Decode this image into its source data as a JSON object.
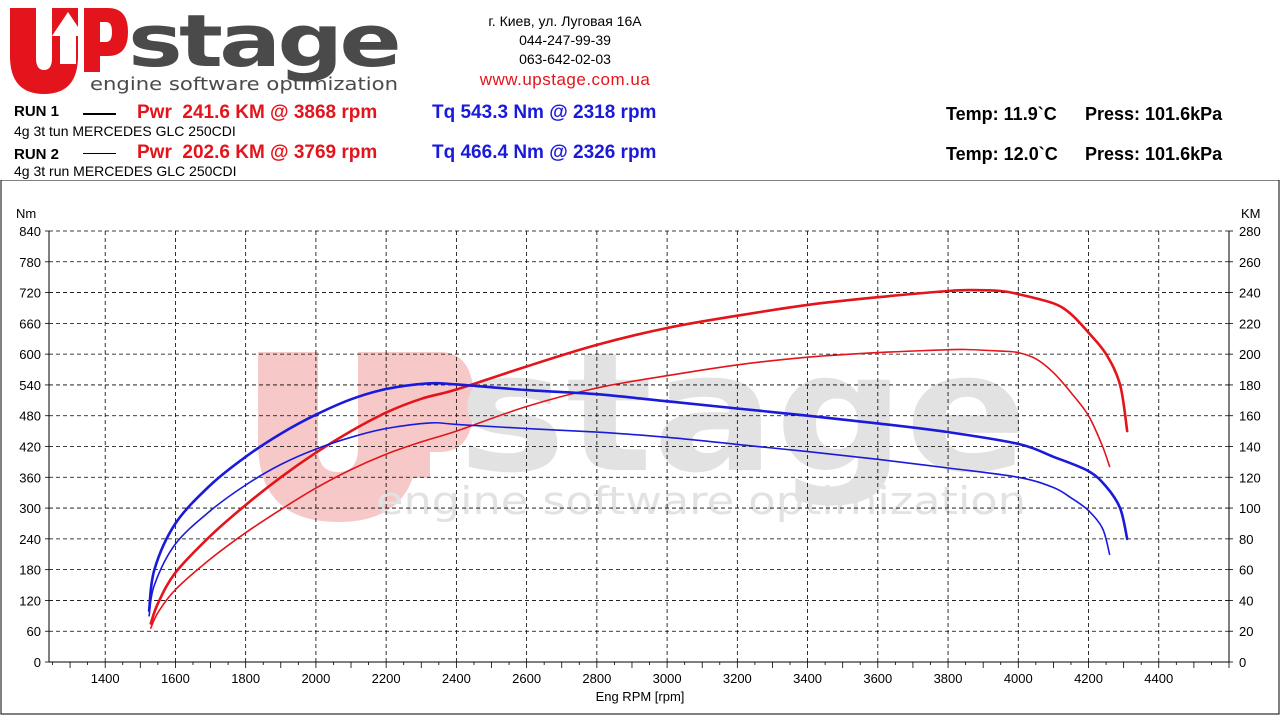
{
  "brand": {
    "logo_main": "UPstage",
    "logo_word": "stage",
    "tagline": "engine software optimization",
    "address": "г. Киев, ул. Луговая 16А",
    "phone1": "044-247-99-39",
    "phone2": "063-642-02-03",
    "website": "www.upstage.com.ua",
    "brand_red": "#e3141b",
    "brand_gray": "#4a4a4a"
  },
  "runs": [
    {
      "label": "RUN 1",
      "pwr": "Pwr  241.6 KM @ 3868 rpm",
      "tq": "Tq 543.3 Nm @ 2318 rpm",
      "temp": "Temp: 11.9`C",
      "press": "Press: 101.6kPa",
      "description": "4g 3t tun MERCEDES GLC 250CDI"
    },
    {
      "label": "RUN 2",
      "pwr": "Pwr  202.6 KM @ 3769 rpm",
      "tq": "Tq 466.4 Nm @ 2326 rpm",
      "temp": "Temp: 12.0`C",
      "press": "Press: 101.6kPa",
      "description": "4g 3t run MERCEDES GLC 250CDI"
    }
  ],
  "chart_data": {
    "type": "line",
    "xlabel": "Eng RPM [rpm]",
    "ylabel_left": "Nm",
    "ylabel_right": "KM",
    "xlim": [
      1240,
      4600
    ],
    "ylim_left": [
      0,
      840
    ],
    "ylim_right": [
      0,
      280
    ],
    "xticks": [
      1400,
      1600,
      1800,
      2000,
      2200,
      2400,
      2600,
      2800,
      3000,
      3200,
      3400,
      3600,
      3800,
      4000,
      4200,
      4400
    ],
    "yticks_left": [
      0,
      60,
      120,
      180,
      240,
      300,
      360,
      420,
      480,
      540,
      600,
      660,
      720,
      780,
      840
    ],
    "yticks_right": [
      0,
      20,
      40,
      60,
      80,
      100,
      120,
      140,
      160,
      180,
      200,
      220,
      240,
      260,
      280
    ],
    "grid": true,
    "colors": {
      "power": "#e3141b",
      "torque": "#1a1adb"
    },
    "series": [
      {
        "name": "RUN 1 Pwr",
        "axis": "right",
        "color": "#e3141b",
        "width": 2.6,
        "x": [
          1530,
          1550,
          1600,
          1700,
          1800,
          1900,
          2000,
          2100,
          2200,
          2300,
          2400,
          2600,
          2800,
          3000,
          3200,
          3400,
          3600,
          3800,
          3868,
          3950,
          4000,
          4100,
          4150,
          4200,
          4250,
          4290,
          4310
        ],
        "y": [
          25,
          38,
          58,
          82,
          102,
          120,
          136,
          150,
          162,
          171,
          177,
          192,
          206,
          217,
          225,
          232,
          237,
          241,
          241.6,
          241,
          239,
          233,
          226,
          214,
          200,
          180,
          150
        ]
      },
      {
        "name": "RUN 2 Pwr",
        "axis": "right",
        "color": "#e3141b",
        "width": 1.6,
        "x": [
          1530,
          1550,
          1600,
          1700,
          1800,
          1900,
          2000,
          2100,
          2200,
          2300,
          2400,
          2600,
          2800,
          3000,
          3200,
          3400,
          3600,
          3769,
          3850,
          3950,
          4000,
          4050,
          4100,
          4150,
          4200,
          4240,
          4260
        ],
        "y": [
          22,
          32,
          47,
          67,
          84,
          99,
          113,
          125,
          135,
          143,
          150,
          166,
          178,
          186,
          193,
          198,
          201,
          202.6,
          203,
          202,
          201,
          197,
          188,
          175,
          160,
          140,
          127
        ]
      },
      {
        "name": "RUN 1 Tq",
        "axis": "left",
        "color": "#1a1adb",
        "width": 2.6,
        "x": [
          1525,
          1540,
          1600,
          1700,
          1800,
          1900,
          2000,
          2100,
          2200,
          2318,
          2400,
          2600,
          2800,
          3000,
          3200,
          3400,
          3600,
          3800,
          4000,
          4100,
          4200,
          4250,
          4290,
          4310
        ],
        "y": [
          100,
          180,
          270,
          345,
          400,
          445,
          482,
          512,
          532,
          543,
          541,
          530,
          522,
          508,
          494,
          480,
          465,
          448,
          425,
          400,
          372,
          342,
          300,
          240
        ]
      },
      {
        "name": "RUN 2 Tq",
        "axis": "left",
        "color": "#1a1adb",
        "width": 1.6,
        "x": [
          1525,
          1540,
          1600,
          1700,
          1800,
          1900,
          2000,
          2100,
          2200,
          2326,
          2400,
          2600,
          2800,
          3000,
          3200,
          3400,
          3600,
          3800,
          4000,
          4100,
          4150,
          4200,
          4240,
          4260
        ],
        "y": [
          90,
          150,
          230,
          295,
          345,
          385,
          415,
          438,
          455,
          466,
          463,
          455,
          448,
          438,
          424,
          410,
          395,
          378,
          360,
          340,
          320,
          295,
          260,
          210
        ]
      }
    ]
  }
}
